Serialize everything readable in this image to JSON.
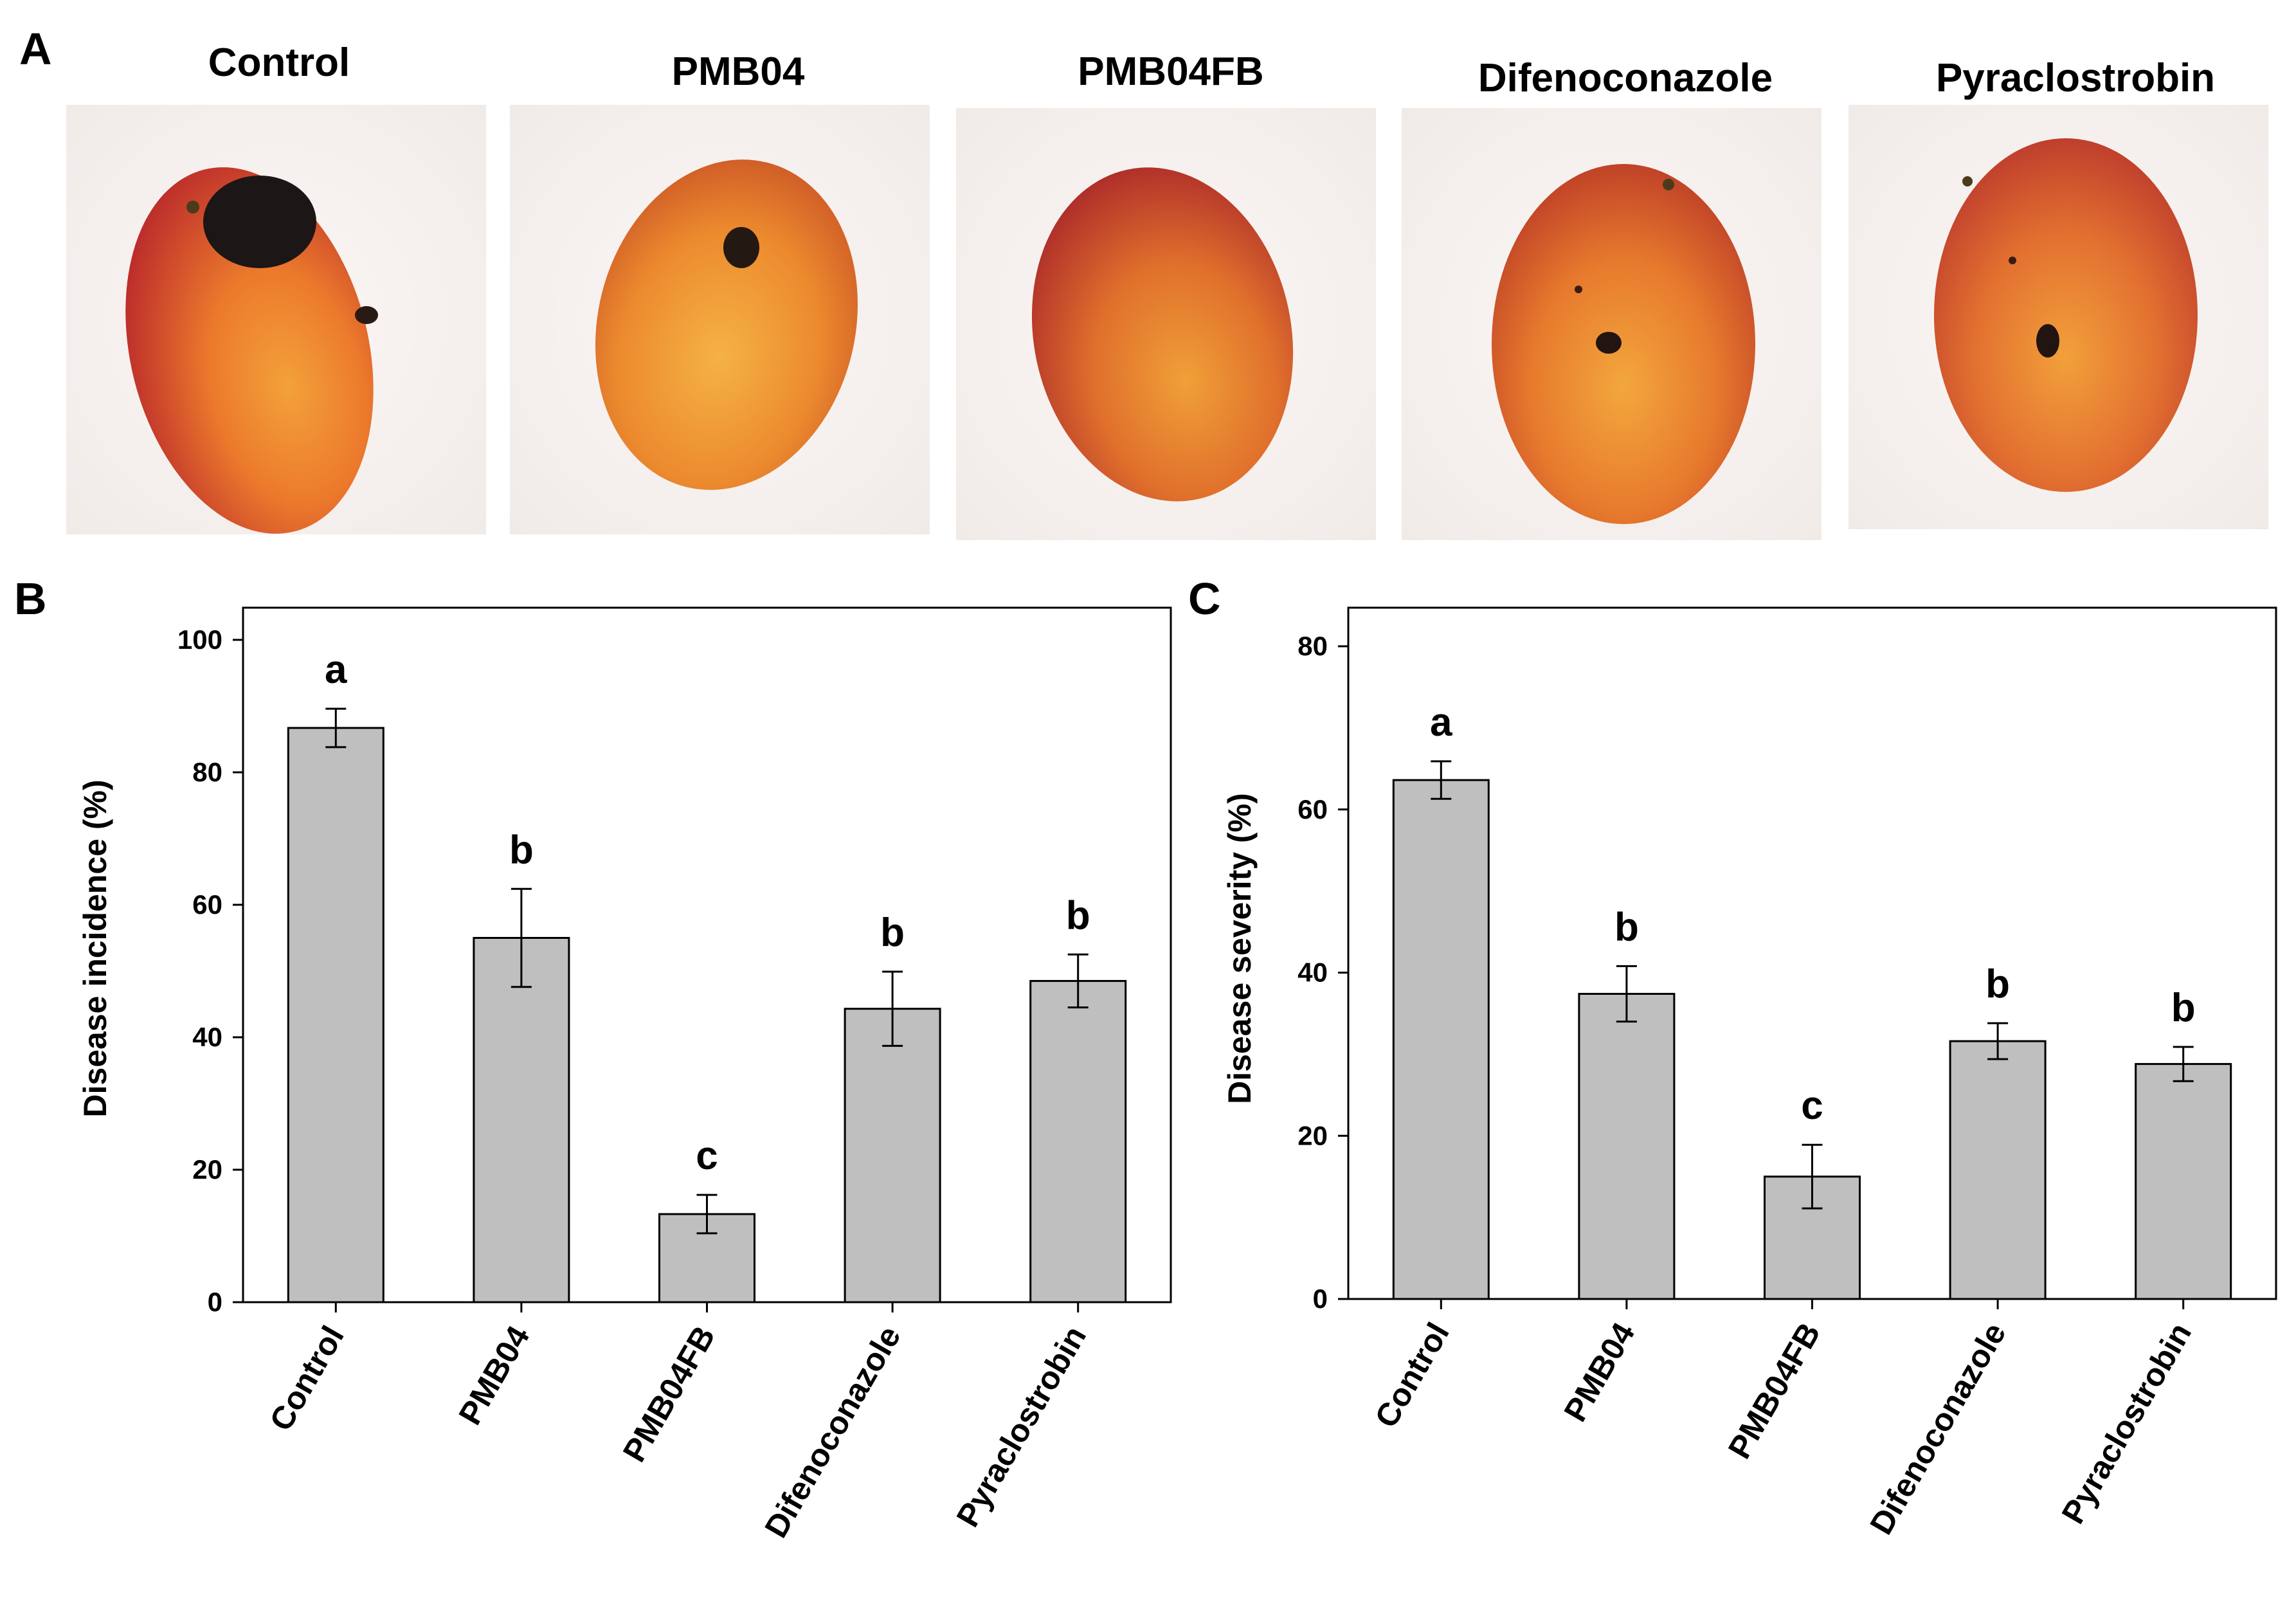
{
  "figure": {
    "panel_letters": [
      "A",
      "B",
      "C"
    ]
  },
  "panel_a": {
    "photos": [
      {
        "label": "Control",
        "skin": "#d8452c",
        "lesion": "large"
      },
      {
        "label": "PMB04",
        "skin": "#e27a2a",
        "lesion": "small"
      },
      {
        "label": "PMB04FB",
        "skin": "#cf4a2a",
        "lesion": "none"
      },
      {
        "label": "Difenoconazole",
        "skin": "#d8532a",
        "lesion": "small"
      },
      {
        "label": "Pyraclostrobin",
        "skin": "#d44a2e",
        "lesion": "small"
      }
    ]
  },
  "chart_data": [
    {
      "type": "bar",
      "panel": "B",
      "categories": [
        "Control",
        "PMB04",
        "PMB04FB",
        "Difenoconazole",
        "Pyraclostrobin"
      ],
      "series": [
        {
          "values": [
            86.7,
            55.0,
            13.3,
            44.3,
            48.5
          ],
          "errors": [
            2.9,
            7.4,
            2.9,
            5.6,
            4.0
          ],
          "significance": [
            "a",
            "b",
            "c",
            "b",
            "b"
          ]
        }
      ],
      "xlabel": "",
      "ylabel": "Disease incidence (%)",
      "ylim": [
        0,
        100
      ],
      "yticks": [
        0,
        20,
        40,
        60,
        80,
        100
      ],
      "bar_color": "#bfbfbf",
      "grid": false
    },
    {
      "type": "bar",
      "panel": "C",
      "categories": [
        "Control",
        "PMB04",
        "PMB04FB",
        "Difenoconazole",
        "Pyraclostrobin"
      ],
      "series": [
        {
          "values": [
            63.6,
            37.4,
            15.0,
            31.6,
            28.8
          ],
          "errors": [
            2.3,
            3.4,
            3.9,
            2.2,
            2.1
          ],
          "significance": [
            "a",
            "b",
            "c",
            "b",
            "b"
          ]
        }
      ],
      "xlabel": "",
      "ylabel": "Disease severity (%)",
      "ylim": [
        0,
        80
      ],
      "yticks": [
        0,
        20,
        40,
        60,
        80
      ],
      "bar_color": "#bfbfbf",
      "grid": false
    }
  ]
}
